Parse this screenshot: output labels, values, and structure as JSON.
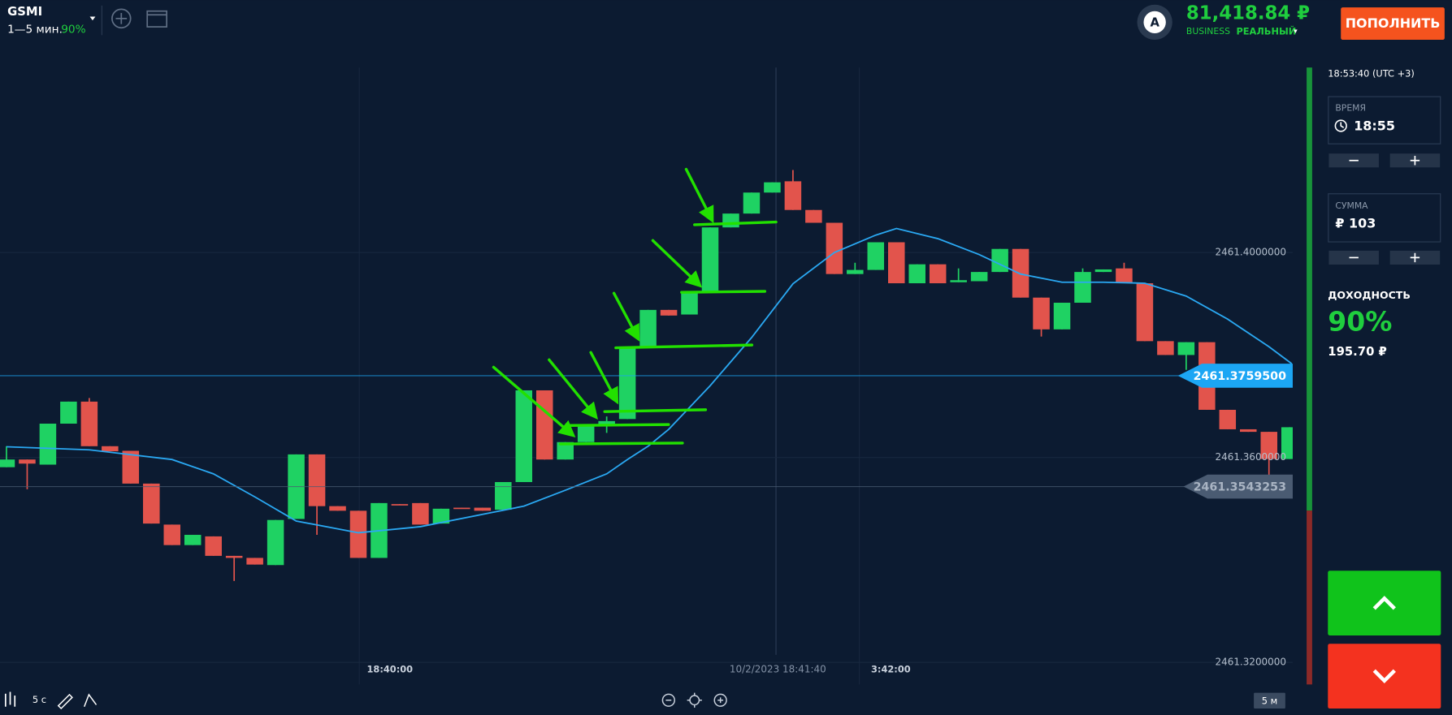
{
  "header": {
    "symbol": "GSMI",
    "expiry": "1—5 мин.",
    "payout": "90%",
    "account_icon": "A",
    "balance": "81,418.84 ₽",
    "account_type": "BUSINESS",
    "account_mode": "РЕАЛЬНЫЙ",
    "deposit_button": "ПОПОЛНИТЬ"
  },
  "sidebar": {
    "clock": "18:53:40 (UTC +3)",
    "time_label": "ВРЕМЯ",
    "time_value": "18:55",
    "amount_label": "СУММА",
    "amount_value": "₽ 103",
    "yield_label": "ДОХОДНОСТЬ",
    "yield_value": "90%",
    "profit": "195.70 ₽"
  },
  "toolbar": {
    "interval": "5 с",
    "timeframe": "5 м"
  },
  "chart_data": {
    "type": "candlestick",
    "up_color": "#1fd263",
    "down_color": "#e2544c",
    "ohlc": [
      [
        2461.3581,
        2461.3622,
        2461.3581,
        2461.3596
      ],
      [
        2461.3596,
        2461.3596,
        2461.3538,
        2461.3588
      ],
      [
        2461.3586,
        2461.3666,
        2461.3586,
        2461.3666
      ],
      [
        2461.3666,
        2461.3709,
        2461.3666,
        2461.3709
      ],
      [
        2461.3709,
        2461.3716,
        2461.3622,
        2461.3622
      ],
      [
        2461.3622,
        2461.3622,
        2461.3612,
        2461.3612
      ],
      [
        2461.3613,
        2461.3613,
        2461.3549,
        2461.3549
      ],
      [
        2461.3549,
        2461.3549,
        2461.3471,
        2461.3471
      ],
      [
        2461.3469,
        2461.3469,
        2461.3429,
        2461.3429
      ],
      [
        2461.3429,
        2461.3449,
        2461.3429,
        2461.3449
      ],
      [
        2461.3446,
        2461.3446,
        2461.3408,
        2461.3408
      ],
      [
        2461.3408,
        2461.3408,
        2461.3359,
        2461.3404
      ],
      [
        2461.3404,
        2461.3404,
        2461.3391,
        2461.3391
      ],
      [
        2461.339,
        2461.3478,
        2461.339,
        2461.3478
      ],
      [
        2461.348,
        2461.3606,
        2461.348,
        2461.3606
      ],
      [
        2461.3606,
        2461.3606,
        2461.3449,
        2461.3505
      ],
      [
        2461.3505,
        2461.3505,
        2461.3496,
        2461.3496
      ],
      [
        2461.3496,
        2461.3496,
        2461.3404,
        2461.3404
      ],
      [
        2461.3404,
        2461.3511,
        2461.3404,
        2461.3511
      ],
      [
        2461.3509,
        2461.3509,
        2461.3507,
        2461.3507
      ],
      [
        2461.3511,
        2461.3511,
        2461.3469,
        2461.3469
      ],
      [
        2461.3471,
        2461.35,
        2461.3471,
        2461.35
      ],
      [
        2461.3502,
        2461.3502,
        2461.35,
        2461.35
      ],
      [
        2461.3502,
        2461.3502,
        2461.3496,
        2461.3496
      ],
      [
        2461.3498,
        2461.3552,
        2461.3498,
        2461.3552
      ],
      [
        2461.3552,
        2461.3731,
        2461.3552,
        2461.3731
      ],
      [
        2461.3731,
        2461.3731,
        2461.3596,
        2461.3596
      ],
      [
        2461.3596,
        2461.363,
        2461.3596,
        2461.363
      ],
      [
        2461.363,
        2461.3664,
        2461.363,
        2461.3664
      ],
      [
        2461.3664,
        2461.368,
        2461.3648,
        2461.3671
      ],
      [
        2461.3675,
        2461.3816,
        2461.3675,
        2461.3816
      ],
      [
        2461.3816,
        2461.3888,
        2461.3816,
        2461.3888
      ],
      [
        2461.3888,
        2461.3888,
        2461.3877,
        2461.3877
      ],
      [
        2461.3879,
        2461.3924,
        2461.3879,
        2461.3924
      ],
      [
        2461.3924,
        2461.4049,
        2461.3924,
        2461.4049
      ],
      [
        2461.4049,
        2461.4076,
        2461.4049,
        2461.4076
      ],
      [
        2461.4076,
        2461.4117,
        2461.4076,
        2461.4117
      ],
      [
        2461.4117,
        2461.4137,
        2461.4117,
        2461.4137
      ],
      [
        2461.4139,
        2461.4161,
        2461.4083,
        2461.4083
      ],
      [
        2461.4083,
        2461.4083,
        2461.4058,
        2461.4058
      ],
      [
        2461.4058,
        2461.4058,
        2461.3958,
        2461.3958
      ],
      [
        2461.3958,
        2461.398,
        2461.3958,
        2461.3966
      ],
      [
        2461.3966,
        2461.402,
        2461.3966,
        2461.402
      ],
      [
        2461.402,
        2461.402,
        2461.394,
        2461.394
      ],
      [
        2461.394,
        2461.3977,
        2461.394,
        2461.3977
      ],
      [
        2461.3977,
        2461.3977,
        2461.394,
        2461.394
      ],
      [
        2461.3942,
        2461.3969,
        2461.3942,
        2461.3946
      ],
      [
        2461.3944,
        2461.3962,
        2461.3944,
        2461.3962
      ],
      [
        2461.3962,
        2461.4007,
        2461.3962,
        2461.4007
      ],
      [
        2461.4007,
        2461.4007,
        2461.3912,
        2461.3912
      ],
      [
        2461.3912,
        2461.3912,
        2461.3836,
        2461.385
      ],
      [
        2461.385,
        2461.3902,
        2461.385,
        2461.3902
      ],
      [
        2461.3902,
        2461.3969,
        2461.3902,
        2461.3962
      ],
      [
        2461.3962,
        2461.3967,
        2461.3962,
        2461.3967
      ],
      [
        2461.3969,
        2461.398,
        2461.394,
        2461.394
      ],
      [
        2461.394,
        2461.394,
        2461.3827,
        2461.3827
      ],
      [
        2461.3827,
        2461.3827,
        2461.38,
        2461.38
      ],
      [
        2461.38,
        2461.3825,
        2461.3771,
        2461.3825
      ],
      [
        2461.3825,
        2461.3825,
        2461.3693,
        2461.3693
      ],
      [
        2461.3693,
        2461.3693,
        2461.3655,
        2461.3655
      ],
      [
        2461.3655,
        2461.3655,
        2461.365,
        2461.365
      ],
      [
        2461.365,
        2461.365,
        2461.3565,
        2461.3597
      ],
      [
        2461.3597,
        2461.3659,
        2461.3597,
        2461.3659
      ]
    ],
    "moving_average": {
      "color": "#2aa8f2",
      "x": [
        0,
        4,
        8,
        10,
        12,
        14,
        17,
        20,
        23,
        25,
        27,
        29,
        30,
        31,
        32,
        34,
        36,
        38,
        40,
        42,
        43,
        45,
        47,
        49,
        51,
        53,
        55,
        57,
        59,
        61,
        62.1
      ],
      "values": [
        2461.3621,
        2461.3615,
        2461.3596,
        2461.3568,
        2461.3523,
        2461.3476,
        2461.3453,
        2461.3465,
        2461.3489,
        2461.3505,
        2461.3536,
        2461.3568,
        2461.3596,
        2461.3622,
        2461.3655,
        2461.374,
        2461.3834,
        2461.3939,
        2461.4,
        2461.4034,
        2461.4047,
        2461.4027,
        2461.3996,
        2461.3958,
        2461.3942,
        2461.3942,
        2461.394,
        2461.3915,
        2461.387,
        2461.3816,
        2461.3783
      ]
    },
    "ylim": [
      2461.3157,
      2461.4361
    ],
    "yticks": [
      {
        "value": 2461.4,
        "label": "2461.4000000"
      },
      {
        "value": 2461.36,
        "label": "2461.3600000"
      },
      {
        "value": 2461.32,
        "label": "2461.3200000"
      }
    ],
    "grid": true,
    "price_tags": [
      {
        "value": 2461.37595,
        "label": "2461.3759500",
        "color": "#1ca6f4"
      },
      {
        "value": 2461.3543253,
        "label": "2461.3543253",
        "color": "#4a5b72"
      }
    ],
    "time_labels": [
      "18:40:00",
      "10/2/2023 18:41:40",
      "3:42:00"
    ]
  }
}
